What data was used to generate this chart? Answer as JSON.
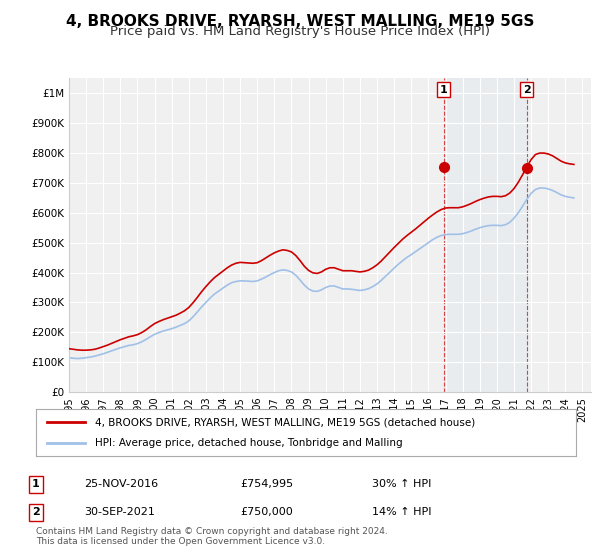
{
  "title": "4, BROOKS DRIVE, RYARSH, WEST MALLING, ME19 5GS",
  "subtitle": "Price paid vs. HM Land Registry's House Price Index (HPI)",
  "title_fontsize": 11,
  "subtitle_fontsize": 9.5,
  "background_color": "#ffffff",
  "plot_bg_color": "#f0f0f0",
  "ylim": [
    0,
    1050000
  ],
  "yticks": [
    0,
    100000,
    200000,
    300000,
    400000,
    500000,
    600000,
    700000,
    800000,
    900000,
    1000000
  ],
  "ytick_labels": [
    "£0",
    "£100K",
    "£200K",
    "£300K",
    "£400K",
    "£500K",
    "£600K",
    "£700K",
    "£800K",
    "£900K",
    "£1M"
  ],
  "xlim_start": 1995.0,
  "xlim_end": 2025.5,
  "hpi_color": "#a0c0e8",
  "price_color": "#cc0000",
  "sale1_year": 2016.9,
  "sale1_price": 754995,
  "sale2_year": 2021.75,
  "sale2_price": 750000,
  "sale1_label": "1",
  "sale2_label": "2",
  "legend_line1": "4, BROOKS DRIVE, RYARSH, WEST MALLING, ME19 5GS (detached house)",
  "legend_line2": "HPI: Average price, detached house, Tonbridge and Malling",
  "table_row1": [
    "1",
    "25-NOV-2016",
    "£754,995",
    "30% ↑ HPI"
  ],
  "table_row2": [
    "2",
    "30-SEP-2021",
    "£750,000",
    "14% ↑ HPI"
  ],
  "footnote": "Contains HM Land Registry data © Crown copyright and database right 2024.\nThis data is licensed under the Open Government Licence v3.0.",
  "hpi_data_years": [
    1995.0,
    1995.25,
    1995.5,
    1995.75,
    1996.0,
    1996.25,
    1996.5,
    1996.75,
    1997.0,
    1997.25,
    1997.5,
    1997.75,
    1998.0,
    1998.25,
    1998.5,
    1998.75,
    1999.0,
    1999.25,
    1999.5,
    1999.75,
    2000.0,
    2000.25,
    2000.5,
    2000.75,
    2001.0,
    2001.25,
    2001.5,
    2001.75,
    2002.0,
    2002.25,
    2002.5,
    2002.75,
    2003.0,
    2003.25,
    2003.5,
    2003.75,
    2004.0,
    2004.25,
    2004.5,
    2004.75,
    2005.0,
    2005.25,
    2005.5,
    2005.75,
    2006.0,
    2006.25,
    2006.5,
    2006.75,
    2007.0,
    2007.25,
    2007.5,
    2007.75,
    2008.0,
    2008.25,
    2008.5,
    2008.75,
    2009.0,
    2009.25,
    2009.5,
    2009.75,
    2010.0,
    2010.25,
    2010.5,
    2010.75,
    2011.0,
    2011.25,
    2011.5,
    2011.75,
    2012.0,
    2012.25,
    2012.5,
    2012.75,
    2013.0,
    2013.25,
    2013.5,
    2013.75,
    2014.0,
    2014.25,
    2014.5,
    2014.75,
    2015.0,
    2015.25,
    2015.5,
    2015.75,
    2016.0,
    2016.25,
    2016.5,
    2016.75,
    2017.0,
    2017.25,
    2017.5,
    2017.75,
    2018.0,
    2018.25,
    2018.5,
    2018.75,
    2019.0,
    2019.25,
    2019.5,
    2019.75,
    2020.0,
    2020.25,
    2020.5,
    2020.75,
    2021.0,
    2021.25,
    2021.5,
    2021.75,
    2022.0,
    2022.25,
    2022.5,
    2022.75,
    2023.0,
    2023.25,
    2023.5,
    2023.75,
    2024.0,
    2024.25,
    2024.5
  ],
  "hpi_data_values": [
    115000,
    113000,
    112000,
    113000,
    115000,
    117000,
    120000,
    124000,
    128000,
    133000,
    138000,
    143000,
    148000,
    152000,
    156000,
    158000,
    162000,
    168000,
    176000,
    185000,
    193000,
    199000,
    204000,
    208000,
    212000,
    217000,
    223000,
    229000,
    238000,
    252000,
    268000,
    285000,
    300000,
    315000,
    328000,
    338000,
    348000,
    358000,
    366000,
    370000,
    372000,
    372000,
    371000,
    370000,
    372000,
    378000,
    385000,
    393000,
    400000,
    406000,
    409000,
    407000,
    402000,
    391000,
    375000,
    358000,
    345000,
    338000,
    337000,
    342000,
    350000,
    355000,
    355000,
    350000,
    345000,
    345000,
    344000,
    342000,
    340000,
    342000,
    346000,
    353000,
    362000,
    374000,
    388000,
    401000,
    415000,
    428000,
    440000,
    451000,
    460000,
    470000,
    480000,
    490000,
    500000,
    510000,
    518000,
    524000,
    527000,
    528000,
    528000,
    528000,
    530000,
    534000,
    539000,
    545000,
    550000,
    554000,
    557000,
    558000,
    558000,
    557000,
    560000,
    568000,
    582000,
    600000,
    622000,
    645000,
    665000,
    678000,
    683000,
    683000,
    680000,
    675000,
    668000,
    660000,
    655000,
    652000,
    650000
  ],
  "price_data_years": [
    1995.0,
    1995.25,
    1995.5,
    1995.75,
    1996.0,
    1996.25,
    1996.5,
    1996.75,
    1997.0,
    1997.25,
    1997.5,
    1997.75,
    1998.0,
    1998.25,
    1998.5,
    1998.75,
    1999.0,
    1999.25,
    1999.5,
    1999.75,
    2000.0,
    2000.25,
    2000.5,
    2000.75,
    2001.0,
    2001.25,
    2001.5,
    2001.75,
    2002.0,
    2002.25,
    2002.5,
    2002.75,
    2003.0,
    2003.25,
    2003.5,
    2003.75,
    2004.0,
    2004.25,
    2004.5,
    2004.75,
    2005.0,
    2005.25,
    2005.5,
    2005.75,
    2006.0,
    2006.25,
    2006.5,
    2006.75,
    2007.0,
    2007.25,
    2007.5,
    2007.75,
    2008.0,
    2008.25,
    2008.5,
    2008.75,
    2009.0,
    2009.25,
    2009.5,
    2009.75,
    2010.0,
    2010.25,
    2010.5,
    2010.75,
    2011.0,
    2011.25,
    2011.5,
    2011.75,
    2012.0,
    2012.25,
    2012.5,
    2012.75,
    2013.0,
    2013.25,
    2013.5,
    2013.75,
    2014.0,
    2014.25,
    2014.5,
    2014.75,
    2015.0,
    2015.25,
    2015.5,
    2015.75,
    2016.0,
    2016.25,
    2016.5,
    2016.75,
    2017.0,
    2017.25,
    2017.5,
    2017.75,
    2018.0,
    2018.25,
    2018.5,
    2018.75,
    2019.0,
    2019.25,
    2019.5,
    2019.75,
    2020.0,
    2020.25,
    2020.5,
    2020.75,
    2021.0,
    2021.25,
    2021.5,
    2021.75,
    2022.0,
    2022.25,
    2022.5,
    2022.75,
    2023.0,
    2023.25,
    2023.5,
    2023.75,
    2024.0,
    2024.25,
    2024.5
  ],
  "price_data_values": [
    145000,
    143000,
    141000,
    140000,
    140000,
    141000,
    143000,
    147000,
    152000,
    157000,
    163000,
    169000,
    175000,
    180000,
    185000,
    188000,
    192000,
    199000,
    208000,
    219000,
    229000,
    236000,
    242000,
    247000,
    252000,
    257000,
    264000,
    272000,
    283000,
    299000,
    317000,
    336000,
    353000,
    369000,
    383000,
    394000,
    405000,
    416000,
    425000,
    431000,
    434000,
    433000,
    432000,
    431000,
    433000,
    440000,
    449000,
    458000,
    466000,
    472000,
    476000,
    474000,
    469000,
    457000,
    440000,
    421000,
    407000,
    399000,
    397000,
    402000,
    411000,
    416000,
    416000,
    411000,
    406000,
    406000,
    406000,
    404000,
    402000,
    404000,
    408000,
    416000,
    426000,
    439000,
    454000,
    469000,
    484000,
    498000,
    512000,
    524000,
    535000,
    546000,
    558000,
    570000,
    582000,
    593000,
    603000,
    611000,
    616000,
    617000,
    617000,
    617000,
    620000,
    625000,
    631000,
    638000,
    644000,
    649000,
    653000,
    655000,
    655000,
    654000,
    657000,
    666000,
    681000,
    702000,
    727000,
    754000,
    778000,
    795000,
    800000,
    800000,
    797000,
    791000,
    782000,
    773000,
    767000,
    764000,
    762000
  ]
}
